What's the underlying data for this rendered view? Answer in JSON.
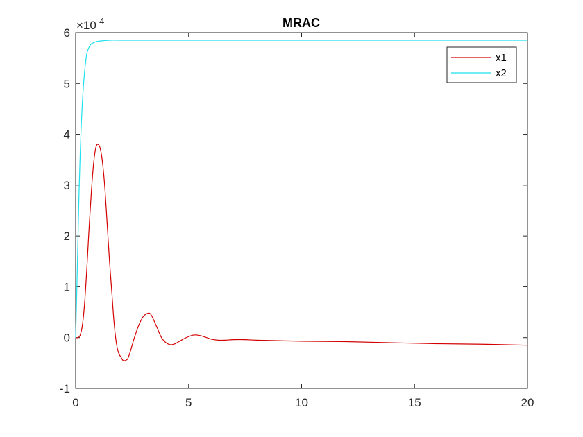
{
  "chart_data": {
    "type": "line",
    "title": "MRAC",
    "xlabel": "",
    "ylabel": "",
    "xlim": [
      0,
      20
    ],
    "ylim": [
      -1,
      6
    ],
    "y_exponent_label": "×10",
    "y_exponent_power": "-4",
    "x_ticks": [
      0,
      5,
      10,
      15,
      20
    ],
    "x_tick_labels": [
      "0",
      "5",
      "10",
      "15",
      "20"
    ],
    "y_ticks": [
      -1,
      0,
      1,
      2,
      3,
      4,
      5,
      6
    ],
    "y_tick_labels": [
      "-1",
      "0",
      "1",
      "2",
      "3",
      "4",
      "5",
      "6"
    ],
    "grid": false,
    "legend_position": "top-right",
    "series": [
      {
        "name": "x1",
        "color": "#d40000",
        "x": [
          0,
          0.1,
          0.2,
          0.3,
          0.4,
          0.5,
          0.6,
          0.7,
          0.8,
          0.9,
          1.0,
          1.1,
          1.2,
          1.3,
          1.4,
          1.5,
          1.6,
          1.7,
          1.8,
          1.9,
          2.0,
          2.1,
          2.2,
          2.3,
          2.4,
          2.5,
          2.6,
          2.8,
          3.0,
          3.2,
          3.3,
          3.4,
          3.6,
          3.8,
          4.0,
          4.2,
          4.4,
          4.6,
          4.8,
          5.0,
          5.2,
          5.4,
          5.6,
          5.8,
          6.0,
          6.3,
          6.6,
          7.0,
          7.5,
          8.0,
          9.0,
          10.0,
          12.0,
          14.0,
          16.0,
          18.0,
          20.0
        ],
        "y": [
          0,
          0.0,
          0.05,
          0.25,
          0.7,
          1.4,
          2.2,
          2.9,
          3.45,
          3.75,
          3.8,
          3.7,
          3.4,
          2.9,
          2.2,
          1.5,
          0.9,
          0.3,
          -0.1,
          -0.3,
          -0.38,
          -0.45,
          -0.45,
          -0.42,
          -0.3,
          -0.15,
          0.0,
          0.25,
          0.42,
          0.48,
          0.47,
          0.4,
          0.2,
          0.0,
          -0.1,
          -0.14,
          -0.12,
          -0.07,
          -0.02,
          0.02,
          0.05,
          0.05,
          0.03,
          0.0,
          -0.03,
          -0.05,
          -0.05,
          -0.04,
          -0.04,
          -0.05,
          -0.06,
          -0.07,
          -0.08,
          -0.1,
          -0.12,
          -0.13,
          -0.15
        ]
      },
      {
        "name": "x2",
        "color": "#1ee0ee",
        "x": [
          0,
          0.05,
          0.1,
          0.15,
          0.2,
          0.25,
          0.3,
          0.35,
          0.4,
          0.45,
          0.5,
          0.6,
          0.7,
          0.8,
          0.9,
          1.0,
          1.2,
          1.5,
          2.0,
          3.0,
          5.0,
          10.0,
          15.0,
          20.0
        ],
        "y": [
          0,
          0.9,
          1.9,
          2.85,
          3.6,
          4.2,
          4.65,
          4.98,
          5.25,
          5.45,
          5.6,
          5.72,
          5.78,
          5.8,
          5.82,
          5.83,
          5.84,
          5.85,
          5.85,
          5.85,
          5.85,
          5.85,
          5.85,
          5.85
        ]
      }
    ]
  }
}
